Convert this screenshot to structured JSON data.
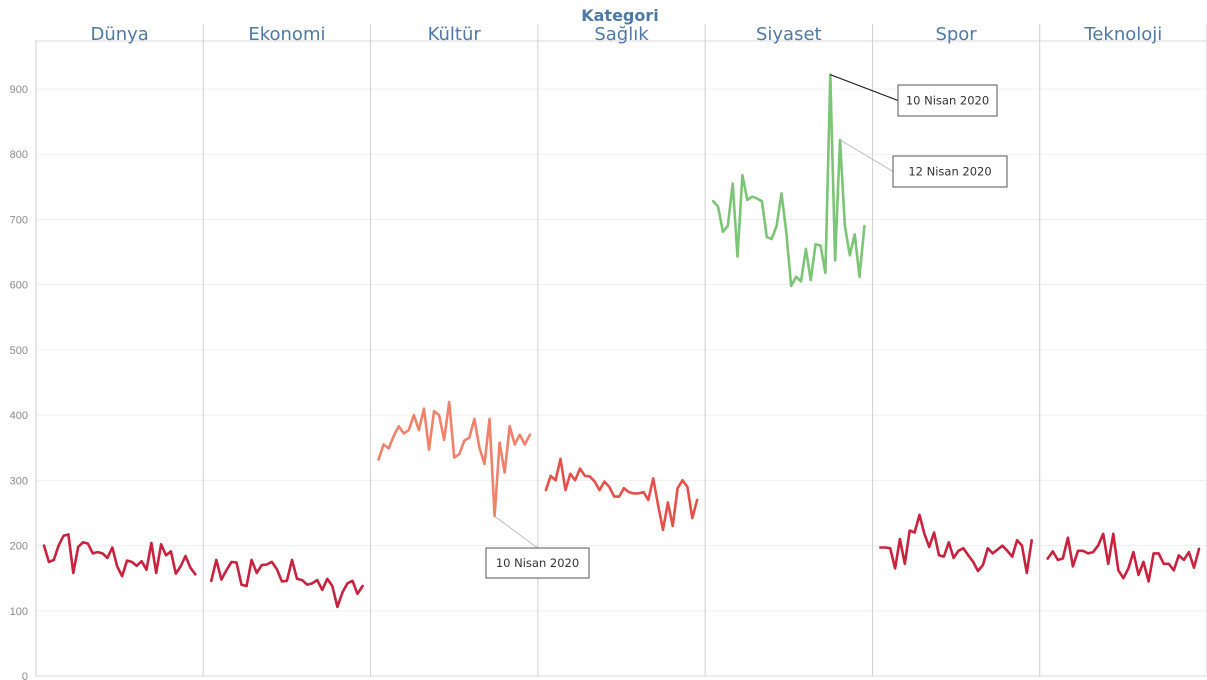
{
  "chart_data": {
    "type": "line",
    "title": "Kategori",
    "ylim": [
      0,
      950
    ],
    "yticks": [
      0,
      100,
      200,
      300,
      400,
      500,
      600,
      700,
      800,
      900
    ],
    "grid": true,
    "colors": {
      "high": "#3e8e41",
      "midHigh": "#7cc576",
      "mid": "#f0826b",
      "midLow": "#e5504a",
      "low": "#c8223e"
    },
    "panels": [
      {
        "name": "Dünya",
        "color": "#c8223e",
        "values": [
          200,
          175,
          178,
          200,
          215,
          217,
          158,
          198,
          205,
          203,
          188,
          190,
          188,
          181,
          197,
          168,
          153,
          177,
          175,
          169,
          176,
          163,
          204,
          158,
          202,
          185,
          191,
          157,
          168,
          184,
          166,
          156
        ]
      },
      {
        "name": "Ekonomi",
        "color": "#c8223e",
        "values": [
          146,
          178,
          148,
          162,
          175,
          174,
          140,
          138,
          178,
          158,
          170,
          171,
          175,
          164,
          145,
          146,
          178,
          149,
          147,
          140,
          142,
          147,
          132,
          149,
          138,
          106,
          128,
          142,
          146,
          126,
          138
        ]
      },
      {
        "name": "Kültür",
        "color": "#f0826b",
        "values": [
          332,
          355,
          349,
          368,
          383,
          372,
          377,
          400,
          377,
          410,
          347,
          406,
          400,
          362,
          420,
          335,
          340,
          361,
          365,
          394,
          350,
          325,
          394,
          245,
          358,
          312,
          383,
          355,
          370,
          355,
          370
        ]
      },
      {
        "name": "Sağlık",
        "color": "#e5504a",
        "values": [
          285,
          307,
          300,
          333,
          285,
          310,
          300,
          318,
          307,
          306,
          298,
          285,
          298,
          290,
          275,
          275,
          288,
          282,
          280,
          280,
          282,
          270,
          303,
          262,
          224,
          266,
          230,
          288,
          300,
          290,
          242,
          270
        ]
      },
      {
        "name": "Siyaset",
        "color": "#7cc576",
        "values": [
          728,
          720,
          681,
          690,
          755,
          643,
          768,
          730,
          735,
          732,
          728,
          673,
          670,
          690,
          740,
          680,
          598,
          612,
          605,
          655,
          607,
          662,
          660,
          618,
          922,
          637,
          822,
          690,
          645,
          677,
          612,
          690
        ]
      },
      {
        "name": "Spor",
        "color": "#c8223e",
        "values": [
          197,
          197,
          196,
          165,
          210,
          172,
          223,
          220,
          247,
          218,
          198,
          220,
          185,
          183,
          205,
          181,
          192,
          196,
          185,
          175,
          161,
          170,
          196,
          188,
          194,
          200,
          192,
          183,
          208,
          200,
          158,
          208
        ]
      },
      {
        "name": "Teknoloji",
        "color": "#c8223e",
        "values": [
          180,
          191,
          178,
          180,
          212,
          168,
          192,
          192,
          188,
          190,
          200,
          218,
          172,
          218,
          162,
          150,
          165,
          190,
          155,
          175,
          145,
          188,
          188,
          172,
          172,
          162,
          185,
          178,
          190,
          166,
          195
        ]
      }
    ],
    "annotations": [
      {
        "panel": 4,
        "pointIndex": 24,
        "text": "10 Nisan 2020"
      },
      {
        "panel": 4,
        "pointIndex": 26,
        "text": "12 Nisan 2020"
      },
      {
        "panel": 2,
        "pointIndex": 23,
        "text": "10 Nisan 2020"
      }
    ]
  }
}
